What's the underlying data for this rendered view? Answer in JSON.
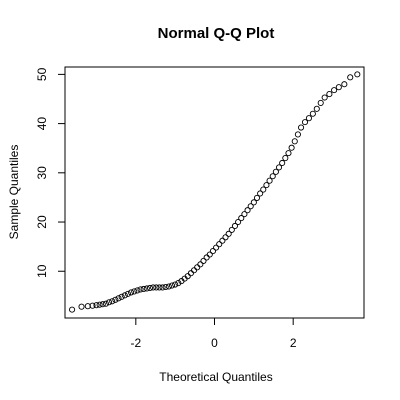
{
  "chart_data": {
    "type": "scatter",
    "title": "Normal Q-Q Plot",
    "xlabel": "Theoretical Quantiles",
    "ylabel": "Sample Quantiles",
    "xlim": [
      -3.8,
      3.8
    ],
    "ylim": [
      0.5,
      51.5
    ],
    "grid": false,
    "marker": "open-circle",
    "point_color": "#000000",
    "x_ticks": [
      -2,
      0,
      2
    ],
    "x_tick_labels": [
      "-2",
      "0",
      "2"
    ],
    "y_ticks": [
      10,
      20,
      30,
      40,
      50
    ],
    "y_tick_labels": [
      "10",
      "20",
      "30",
      "40",
      "50"
    ],
    "series": [
      {
        "points": [
          [
            -3.62,
            2.2
          ],
          [
            -3.38,
            2.8
          ],
          [
            -3.22,
            2.9
          ],
          [
            -3.1,
            3.0
          ],
          [
            -3.0,
            3.1
          ],
          [
            -2.92,
            3.2
          ],
          [
            -2.84,
            3.3
          ],
          [
            -2.76,
            3.4
          ],
          [
            -2.68,
            3.7
          ],
          [
            -2.6,
            3.9
          ],
          [
            -2.52,
            4.2
          ],
          [
            -2.44,
            4.5
          ],
          [
            -2.36,
            4.8
          ],
          [
            -2.28,
            5.1
          ],
          [
            -2.2,
            5.4
          ],
          [
            -2.12,
            5.7
          ],
          [
            -2.04,
            5.9
          ],
          [
            -1.96,
            6.1
          ],
          [
            -1.88,
            6.3
          ],
          [
            -1.8,
            6.4
          ],
          [
            -1.72,
            6.5
          ],
          [
            -1.64,
            6.6
          ],
          [
            -1.56,
            6.7
          ],
          [
            -1.48,
            6.7
          ],
          [
            -1.4,
            6.7
          ],
          [
            -1.32,
            6.7
          ],
          [
            -1.24,
            6.8
          ],
          [
            -1.16,
            6.9
          ],
          [
            -1.08,
            7.1
          ],
          [
            -1.0,
            7.3
          ],
          [
            -0.92,
            7.6
          ],
          [
            -0.84,
            8.0
          ],
          [
            -0.76,
            8.5
          ],
          [
            -0.68,
            9.0
          ],
          [
            -0.6,
            9.6
          ],
          [
            -0.52,
            10.2
          ],
          [
            -0.44,
            10.8
          ],
          [
            -0.36,
            11.4
          ],
          [
            -0.28,
            12.1
          ],
          [
            -0.2,
            12.8
          ],
          [
            -0.12,
            13.4
          ],
          [
            -0.04,
            14.1
          ],
          [
            0.04,
            14.8
          ],
          [
            0.12,
            15.5
          ],
          [
            0.2,
            16.2
          ],
          [
            0.28,
            16.9
          ],
          [
            0.36,
            17.6
          ],
          [
            0.44,
            18.4
          ],
          [
            0.52,
            19.2
          ],
          [
            0.6,
            20.0
          ],
          [
            0.68,
            20.8
          ],
          [
            0.76,
            21.6
          ],
          [
            0.84,
            22.4
          ],
          [
            0.92,
            23.2
          ],
          [
            1.0,
            24.0
          ],
          [
            1.08,
            24.9
          ],
          [
            1.16,
            25.8
          ],
          [
            1.24,
            26.6
          ],
          [
            1.32,
            27.5
          ],
          [
            1.4,
            28.4
          ],
          [
            1.48,
            29.3
          ],
          [
            1.56,
            30.2
          ],
          [
            1.64,
            31.1
          ],
          [
            1.72,
            32.0
          ],
          [
            1.8,
            33.0
          ],
          [
            1.88,
            34.0
          ],
          [
            1.96,
            35.1
          ],
          [
            2.04,
            36.4
          ],
          [
            2.12,
            37.8
          ],
          [
            2.2,
            39.2
          ],
          [
            2.3,
            40.3
          ],
          [
            2.4,
            41.1
          ],
          [
            2.5,
            42.0
          ],
          [
            2.6,
            43.0
          ],
          [
            2.7,
            44.2
          ],
          [
            2.8,
            45.3
          ],
          [
            2.92,
            46.0
          ],
          [
            3.04,
            46.8
          ],
          [
            3.16,
            47.4
          ],
          [
            3.3,
            48.0
          ],
          [
            3.45,
            49.4
          ],
          [
            3.63,
            50.0
          ]
        ]
      }
    ]
  }
}
